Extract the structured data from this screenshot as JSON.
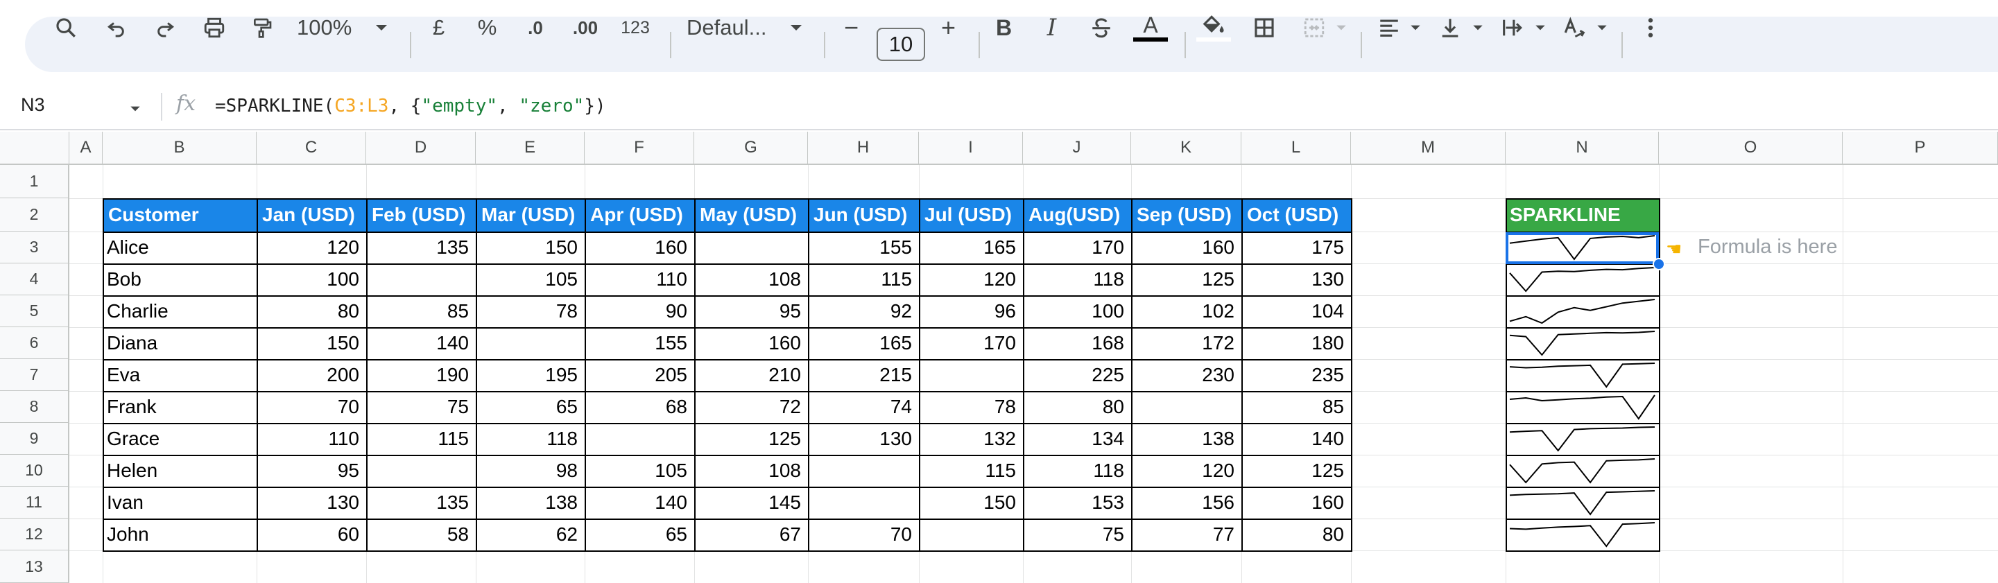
{
  "toolbar": {
    "zoom": "100%",
    "currency": "£",
    "percent": "%",
    "dec_decrease": ".0",
    "dec_increase": ".00",
    "number_format": "123",
    "font": "Defaul...",
    "font_size": "10",
    "minus": "−",
    "plus": "+",
    "bold": "B",
    "italic": "I",
    "text_color": "A"
  },
  "formula_bar": {
    "cell_ref": "N3",
    "fx": "fx",
    "formula_prefix": "=SPARKLINE(",
    "formula_range": "C3:L3",
    "formula_mid1": ", {",
    "formula_str1": "\"empty\"",
    "formula_mid2": ", ",
    "formula_str2": "\"zero\"",
    "formula_suffix": "})"
  },
  "columns": [
    "A",
    "B",
    "C",
    "D",
    "E",
    "F",
    "G",
    "H",
    "I",
    "J",
    "K",
    "L",
    "M",
    "N",
    "O",
    "P"
  ],
  "rows": [
    "1",
    "2",
    "3",
    "4",
    "5",
    "6",
    "7",
    "8",
    "9",
    "10",
    "11",
    "12",
    "13"
  ],
  "table": {
    "headers": [
      "Customer",
      "Jan (USD)",
      "Feb (USD)",
      "Mar (USD)",
      "Apr (USD)",
      "May (USD)",
      "Jun (USD)",
      "Jul (USD)",
      "Aug(USD)",
      "Sep (USD)",
      "Oct (USD)"
    ],
    "rows": [
      [
        "Alice",
        "120",
        "135",
        "150",
        "160",
        "",
        "155",
        "165",
        "170",
        "160",
        "175"
      ],
      [
        "Bob",
        "100",
        "",
        "105",
        "110",
        "108",
        "115",
        "120",
        "118",
        "125",
        "130"
      ],
      [
        "Charlie",
        "80",
        "85",
        "78",
        "90",
        "95",
        "92",
        "96",
        "100",
        "102",
        "104"
      ],
      [
        "Diana",
        "150",
        "140",
        "",
        "155",
        "160",
        "165",
        "170",
        "168",
        "172",
        "180"
      ],
      [
        "Eva",
        "200",
        "190",
        "195",
        "205",
        "210",
        "215",
        "",
        "225",
        "230",
        "235"
      ],
      [
        "Frank",
        "70",
        "75",
        "65",
        "68",
        "72",
        "74",
        "78",
        "80",
        "",
        "85"
      ],
      [
        "Grace",
        "110",
        "115",
        "118",
        "",
        "125",
        "130",
        "132",
        "134",
        "138",
        "140"
      ],
      [
        "Helen",
        "95",
        "",
        "98",
        "105",
        "108",
        "",
        "115",
        "118",
        "120",
        "125"
      ],
      [
        "Ivan",
        "130",
        "135",
        "138",
        "140",
        "145",
        "",
        "150",
        "153",
        "156",
        "160"
      ],
      [
        "John",
        "60",
        "58",
        "62",
        "65",
        "67",
        "70",
        "",
        "75",
        "77",
        "80"
      ]
    ]
  },
  "sparkline_header": "SPARKLINE",
  "note": "Formula is here",
  "colors": {
    "header_blue": "#1a86e8",
    "sparkline_green": "#38a845",
    "selection": "#1a73e8"
  }
}
